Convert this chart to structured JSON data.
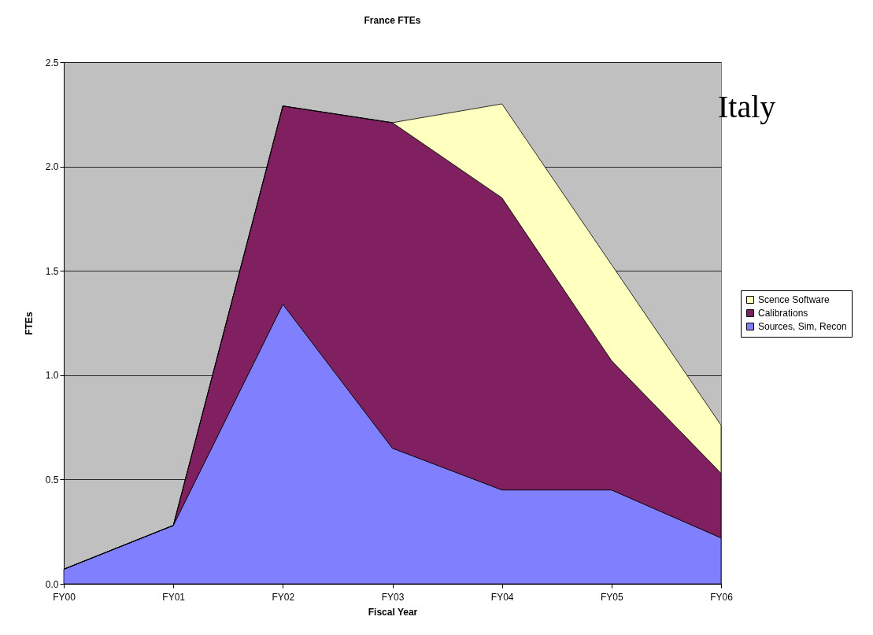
{
  "chart_data": {
    "type": "area",
    "title": "France FTEs",
    "xlabel": "Fiscal Year",
    "ylabel": "FTEs",
    "stacked": true,
    "categories": [
      "FY00",
      "FY01",
      "FY02",
      "FY03",
      "FY04",
      "FY05",
      "FY06"
    ],
    "series": [
      {
        "name": "Sources, Sim, Recon",
        "color": "#8080ff",
        "values": [
          0.07,
          0.28,
          1.34,
          0.65,
          0.45,
          0.45,
          0.22
        ]
      },
      {
        "name": "Calibrations",
        "color": "#802060",
        "values": [
          0,
          0,
          0.95,
          1.56,
          1.4,
          0.62,
          0.31
        ]
      },
      {
        "name": "Scence Software",
        "color": "#ffffc0",
        "values": [
          0,
          0,
          0,
          0,
          0.45,
          0.46,
          0.23
        ]
      }
    ],
    "ylim": [
      0,
      2.5
    ],
    "yticks": [
      {
        "value": 0,
        "label": "0.0"
      },
      {
        "value": 0.5,
        "label": "0.5"
      },
      {
        "value": 1,
        "label": "1.0"
      },
      {
        "value": 1.5,
        "label": "1.5"
      },
      {
        "value": 2,
        "label": "2.0"
      },
      {
        "value": 2.5,
        "label": "2.5"
      }
    ],
    "grid": "y",
    "legend": "right",
    "annotations": [
      "Italy"
    ]
  }
}
